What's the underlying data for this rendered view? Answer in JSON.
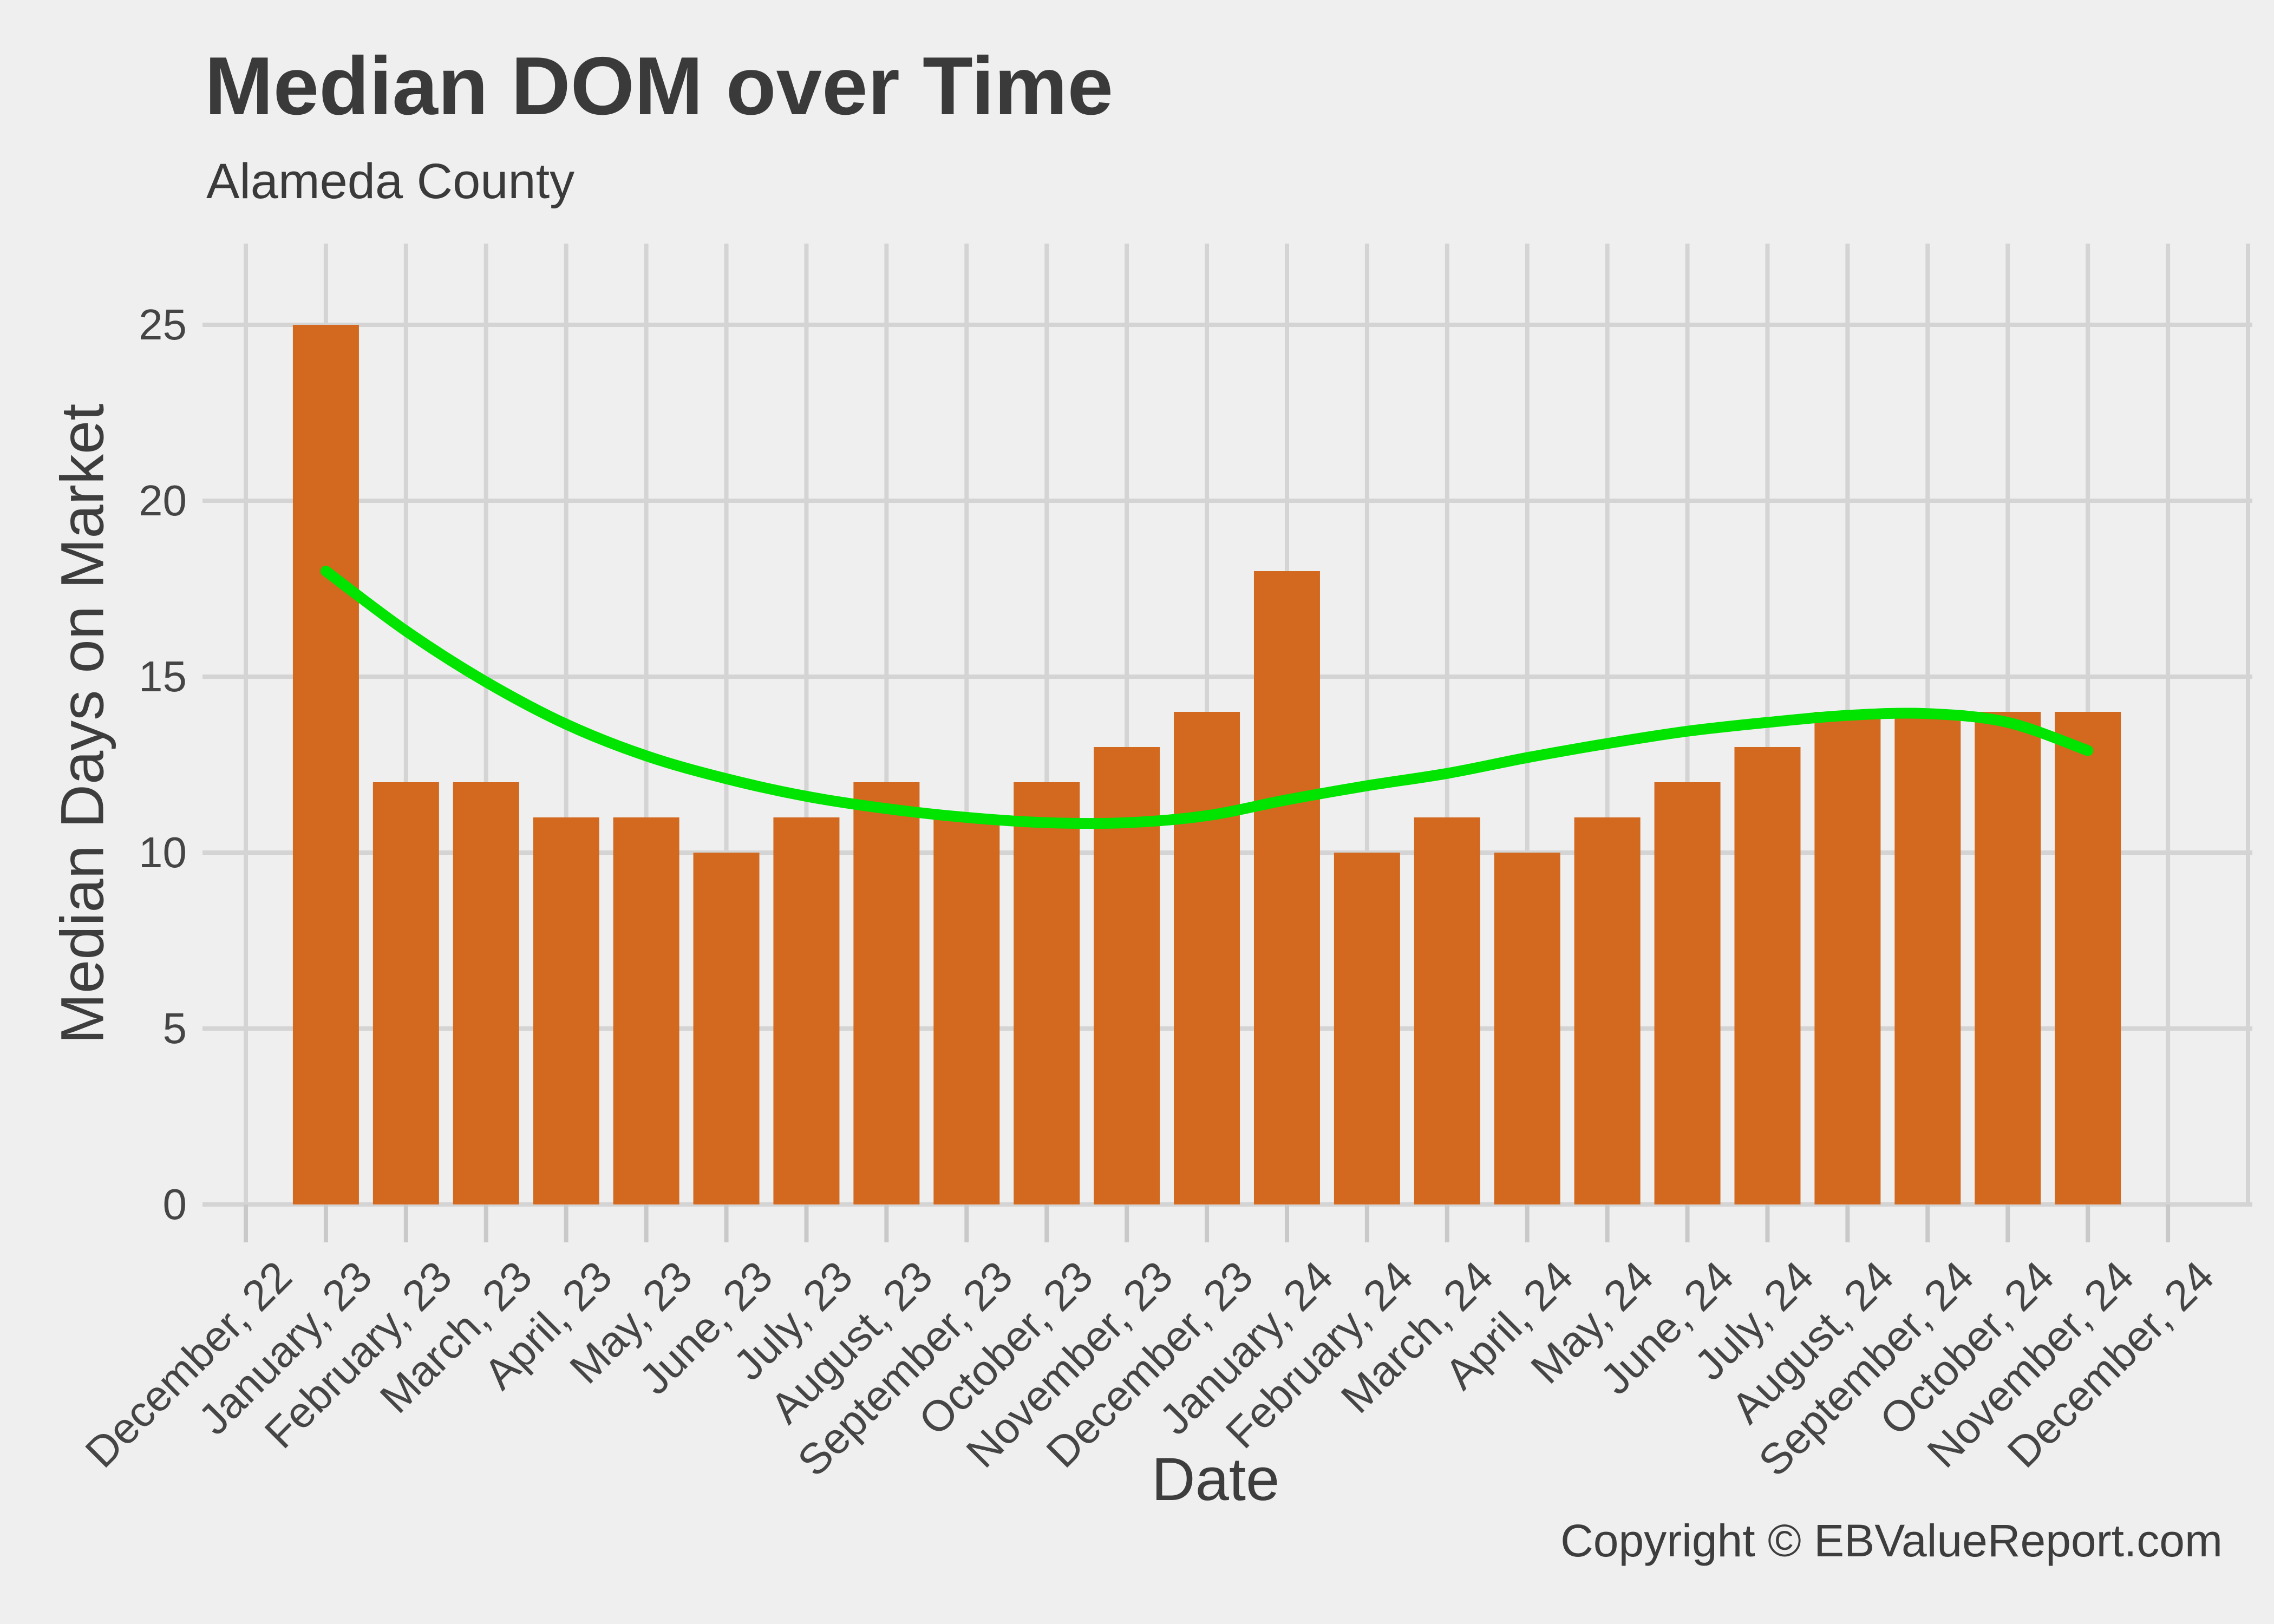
{
  "header": {
    "title": "Median DOM over Time",
    "subtitle": "Alameda County"
  },
  "footer": {
    "copyright": "Copyright  © EBValueReport.com"
  },
  "chart_data": {
    "type": "bar",
    "title": "Median DOM over Time",
    "subtitle": "Alameda County",
    "xlabel": "Date",
    "ylabel": "Median Days on Market",
    "categories": [
      "December, 22",
      "January, 23",
      "February, 23",
      "March, 23",
      "April, 23",
      "May, 23",
      "June, 23",
      "July, 23",
      "August, 23",
      "September, 23",
      "October, 23",
      "November, 23",
      "December, 23",
      "January, 24",
      "February, 24",
      "March, 24",
      "April, 24",
      "May, 24",
      "June, 24",
      "July, 24",
      "August, 24",
      "September, 24",
      "October, 24",
      "November, 24",
      "December, 24"
    ],
    "values": [
      null,
      25,
      12,
      12,
      11,
      11,
      10,
      11,
      12,
      11,
      12,
      13,
      14,
      18,
      10,
      11,
      10,
      11,
      12,
      13,
      14,
      14,
      14,
      14,
      null
    ],
    "yticks": [
      0,
      5,
      10,
      15,
      20,
      25
    ],
    "ylim": [
      0,
      27.3
    ],
    "grid": true,
    "legend_position": "none",
    "smooth_line_points": [
      [
        1,
        18.0
      ],
      [
        2,
        16.3
      ],
      [
        3,
        14.85
      ],
      [
        4,
        13.65
      ],
      [
        5,
        12.75
      ],
      [
        6,
        12.1
      ],
      [
        7,
        11.6
      ],
      [
        8,
        11.25
      ],
      [
        9,
        11.0
      ],
      [
        10,
        10.85
      ],
      [
        11,
        10.85
      ],
      [
        12,
        11.05
      ],
      [
        13,
        11.5
      ],
      [
        14,
        11.9
      ],
      [
        15,
        12.25
      ],
      [
        16,
        12.7
      ],
      [
        17,
        13.1
      ],
      [
        18,
        13.45
      ],
      [
        19,
        13.7
      ],
      [
        20,
        13.9
      ],
      [
        21,
        13.95
      ],
      [
        22,
        13.7
      ],
      [
        23,
        12.9
      ]
    ],
    "colors": {
      "bar": "#d2691e",
      "smooth_line": "#00e400",
      "gridline": "#d4d4d4",
      "tick_mark": "#c9c9c9",
      "background": "#efefef",
      "title_text": "#3a3a3a",
      "label_text": "#454545"
    }
  }
}
